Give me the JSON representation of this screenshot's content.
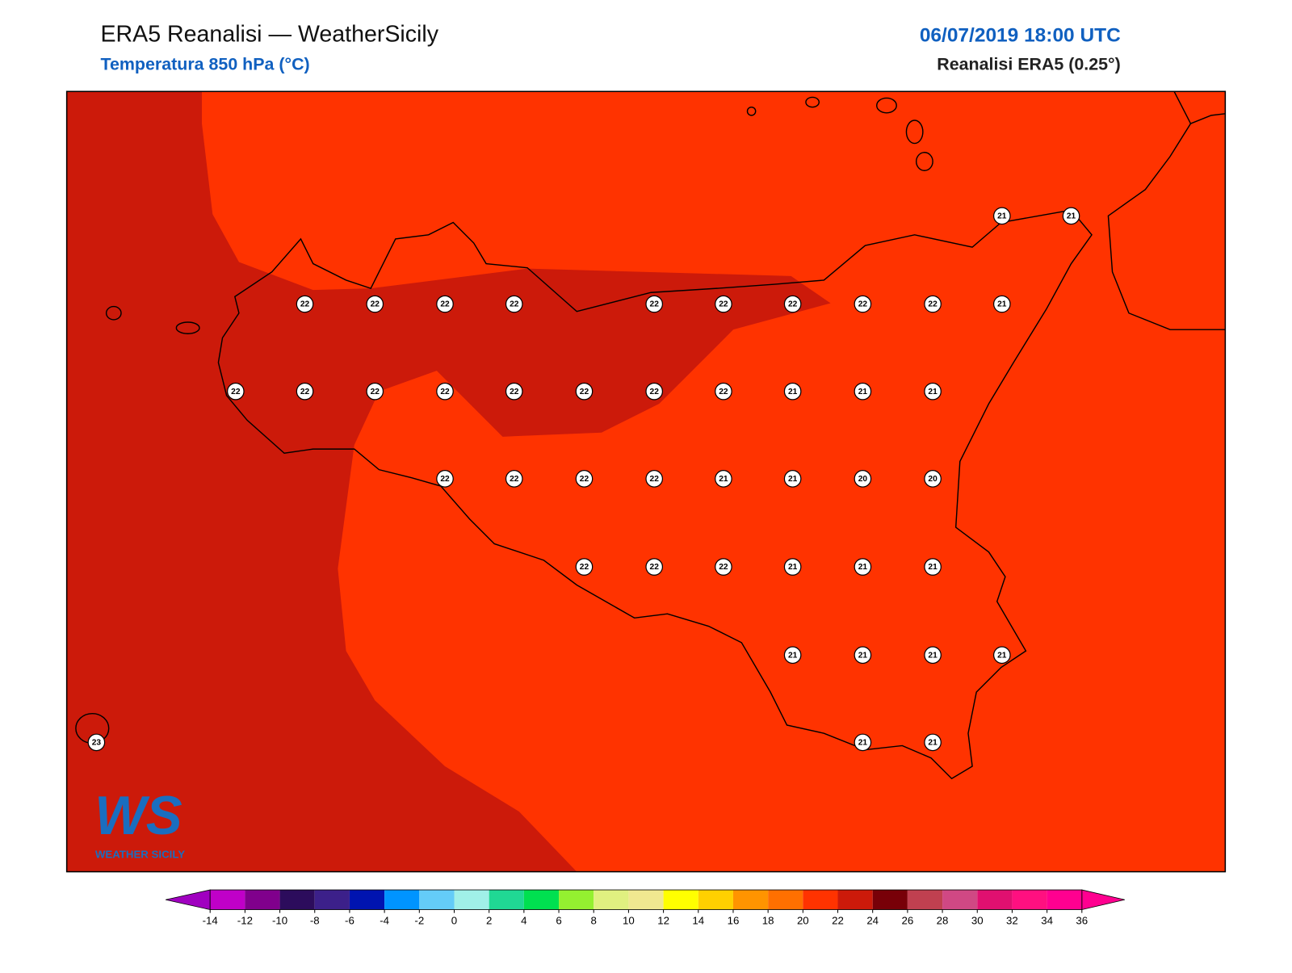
{
  "header": {
    "title": "ERA5 Reanalisi — WeatherSicily",
    "subtitle": "Temperatura 850 hPa (°C)",
    "datetime": "06/07/2019 18:00 UTC",
    "source": "Reanalisi ERA5 (0.25°)"
  },
  "stations": [
    21,
    21,
    22,
    22,
    22,
    22,
    22,
    22,
    22,
    22,
    22,
    21,
    22,
    22,
    22,
    22,
    22,
    22,
    22,
    22,
    21,
    21,
    21,
    22,
    22,
    22,
    22,
    21,
    21,
    20,
    20,
    22,
    22,
    22,
    21,
    21,
    21,
    21,
    21,
    21,
    21,
    23,
    21,
    21
  ],
  "logo": {
    "mark": "WS",
    "text": "WEATHER SICILY"
  },
  "colorbar": {
    "ticks": [
      -14,
      -12,
      -10,
      -8,
      -6,
      -4,
      -2,
      0,
      2,
      4,
      6,
      8,
      10,
      12,
      14,
      16,
      18,
      20,
      22,
      24,
      26,
      28,
      30,
      32,
      34,
      36
    ],
    "colors": [
      "#c000c8",
      "#80008c",
      "#2c0c5c",
      "#3c208a",
      "#0014b0",
      "#0094ff",
      "#64ccf8",
      "#a0f0e8",
      "#20d894",
      "#00e050",
      "#94f030",
      "#e0f080",
      "#f0e890",
      "#ffff00",
      "#ffd000",
      "#ff9400",
      "#ff7000",
      "#ff3300",
      "#cc1a0a",
      "#780008",
      "#c04050",
      "#d04884",
      "#e01070",
      "#ff1080",
      "#ff0090"
    ],
    "under_color": "#a000c0",
    "over_color": "#ff0090"
  }
}
